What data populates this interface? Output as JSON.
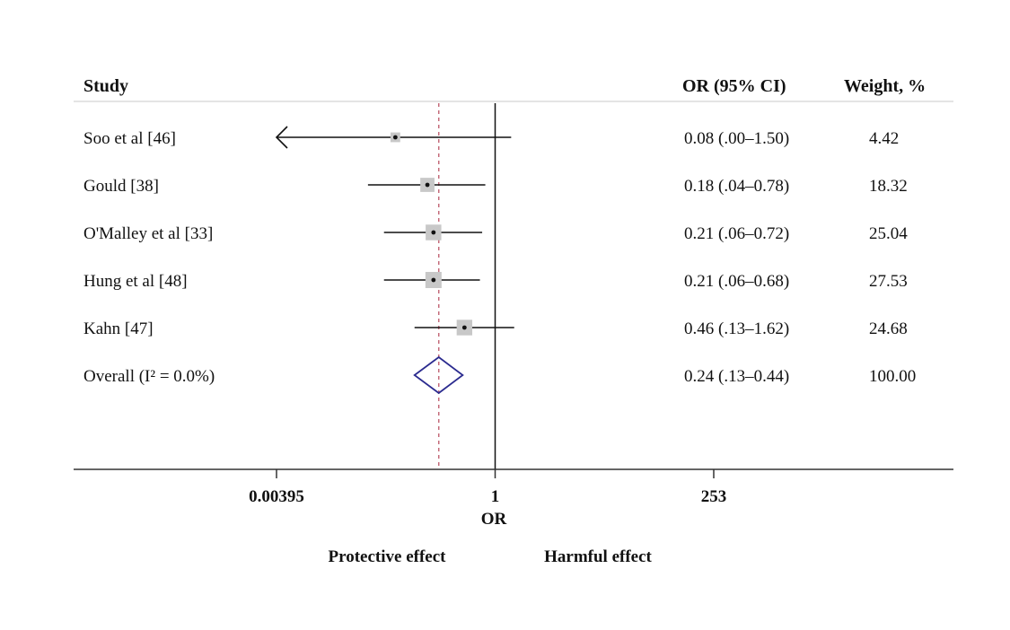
{
  "chart_data": {
    "type": "forest",
    "headers": {
      "study": "Study",
      "or_ci": "OR (95% CI)",
      "weight": "Weight, %"
    },
    "studies": [
      {
        "label": "Soo et al [46]",
        "or": 0.08,
        "lo": 0.001,
        "hi": 1.5,
        "ci_text": "0.08 (.00–1.50)",
        "weight": 4.42,
        "weight_text": "4.42",
        "arrow_left": true
      },
      {
        "label": "Gould [38]",
        "or": 0.18,
        "lo": 0.04,
        "hi": 0.78,
        "ci_text": "0.18 (.04–0.78)",
        "weight": 18.32,
        "weight_text": "18.32"
      },
      {
        "label": "O'Malley et al [33]",
        "or": 0.21,
        "lo": 0.06,
        "hi": 0.72,
        "ci_text": "0.21 (.06–0.72)",
        "weight": 25.04,
        "weight_text": "25.04"
      },
      {
        "label": "Hung et al [48]",
        "or": 0.21,
        "lo": 0.06,
        "hi": 0.68,
        "ci_text": "0.21 (.06–0.68)",
        "weight": 27.53,
        "weight_text": "27.53"
      },
      {
        "label": "Kahn [47]",
        "or": 0.46,
        "lo": 0.13,
        "hi": 1.62,
        "ci_text": "0.46 (.13–1.62)",
        "weight": 24.68,
        "weight_text": "24.68"
      }
    ],
    "overall": {
      "label": "Overall (I² = 0.0%)",
      "or": 0.24,
      "lo": 0.13,
      "hi": 0.44,
      "ci_text": "0.24 (.13–0.44)",
      "weight_text": "100.00"
    },
    "x_scale": "log",
    "xlim": [
      0.00395,
      253
    ],
    "x_ticks": [
      {
        "value": 0.00395,
        "label": "0.00395"
      },
      {
        "value": 1,
        "label": "1"
      },
      {
        "value": 253,
        "label": "253"
      }
    ],
    "xlabel": "OR",
    "null_line": 1,
    "pooled_line": 0.24,
    "annotations": {
      "left": "Protective effect",
      "right": "Harmful effect"
    },
    "colors": {
      "diamond": "#2b2b8f",
      "pooled_line": "#c46a7a",
      "box": "#c8c8c8",
      "line": "#111111"
    }
  }
}
